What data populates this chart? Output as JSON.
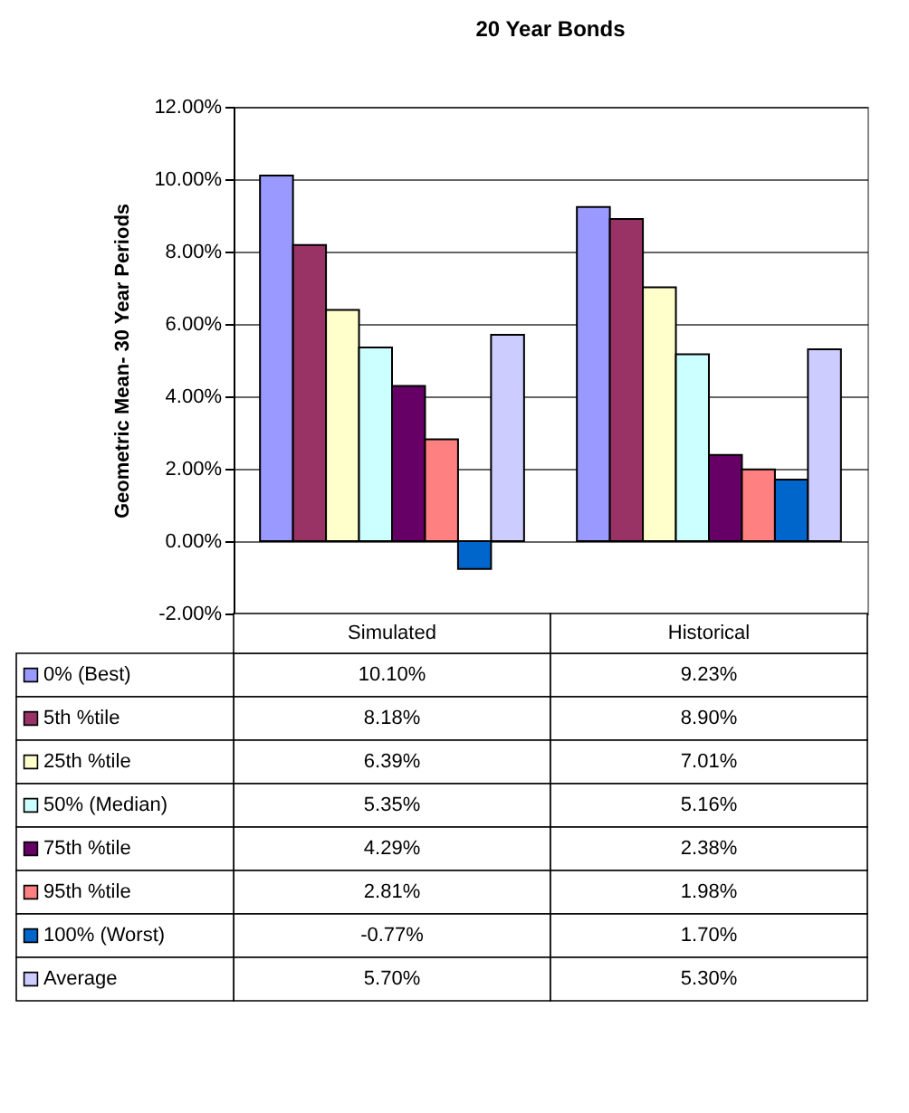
{
  "chart_data": {
    "type": "bar",
    "title": "20 Year Bonds",
    "ylabel": "Geometric Mean- 30 Year Periods",
    "categories": [
      "Simulated",
      "Historical"
    ],
    "ylim": [
      -2,
      12
    ],
    "yticks": [
      {
        "value": -2,
        "label": "-2.00%"
      },
      {
        "value": 0,
        "label": "0.00%"
      },
      {
        "value": 2,
        "label": "2.00%"
      },
      {
        "value": 4,
        "label": "4.00%"
      },
      {
        "value": 6,
        "label": "6.00%"
      },
      {
        "value": 8,
        "label": "8.00%"
      },
      {
        "value": 10,
        "label": "10.00%"
      },
      {
        "value": 12,
        "label": "12.00%"
      }
    ],
    "grid": "y",
    "legend": "bottom left",
    "series": [
      {
        "name": "0% (Best)",
        "color": "#9999ff",
        "values": [
          10.1,
          9.23
        ],
        "value_labels": [
          "10.10%",
          "9.23%"
        ]
      },
      {
        "name": "5th %tile",
        "color": "#993366",
        "values": [
          8.18,
          8.9
        ],
        "value_labels": [
          "8.18%",
          "8.90%"
        ]
      },
      {
        "name": "25th %tile",
        "color": "#ffffcc",
        "values": [
          6.39,
          7.01
        ],
        "value_labels": [
          "6.39%",
          "7.01%"
        ]
      },
      {
        "name": "50% (Median)",
        "color": "#ccffff",
        "values": [
          5.35,
          5.16
        ],
        "value_labels": [
          "5.35%",
          "5.16%"
        ]
      },
      {
        "name": "75th %tile",
        "color": "#660066",
        "values": [
          4.29,
          2.38
        ],
        "value_labels": [
          "4.29%",
          "2.38%"
        ]
      },
      {
        "name": "95th %tile",
        "color": "#ff8080",
        "values": [
          2.81,
          1.98
        ],
        "value_labels": [
          "2.81%",
          "1.98%"
        ]
      },
      {
        "name": "100% (Worst)",
        "color": "#0066cc",
        "values": [
          -0.77,
          1.7
        ],
        "value_labels": [
          "-0.77%",
          "1.70%"
        ]
      },
      {
        "name": "Average",
        "color": "#ccccff",
        "values": [
          5.7,
          5.3
        ],
        "value_labels": [
          "5.70%",
          "5.30%"
        ]
      }
    ]
  }
}
